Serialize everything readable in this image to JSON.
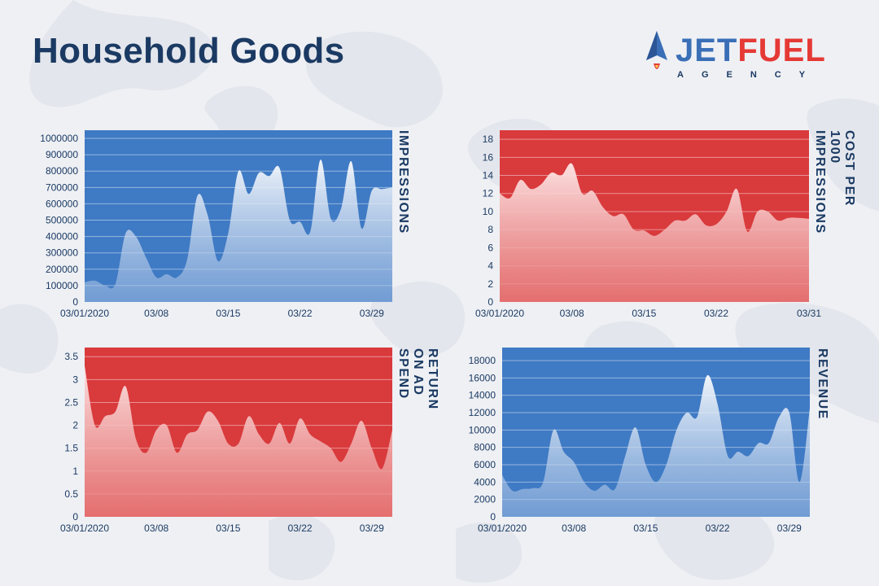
{
  "header": {
    "title": "Household Goods"
  },
  "logo": {
    "word_a": "JET",
    "word_b": "FUEL",
    "sub": "AGENCY",
    "icon": "rocket-icon",
    "colors": {
      "blue": "#3a6fb7",
      "red": "#e53935"
    }
  },
  "colors": {
    "blue": "#3f7ac4",
    "red": "#d93a3c",
    "text": "#1b3a63",
    "background": "#eef0f4"
  },
  "chart_data": [
    {
      "id": "impressions",
      "type": "area",
      "ylabel": "IMPRESSIONS",
      "theme": "blue",
      "ylim": [
        0,
        1050000
      ],
      "yticks": [
        0,
        100000,
        200000,
        300000,
        400000,
        500000,
        600000,
        700000,
        800000,
        900000,
        1000000
      ],
      "xticks": [
        {
          "day": 1,
          "label": "03/01/2020"
        },
        {
          "day": 8,
          "label": "03/08"
        },
        {
          "day": 15,
          "label": "03/15"
        },
        {
          "day": 22,
          "label": "03/22"
        },
        {
          "day": 29,
          "label": "03/29"
        }
      ],
      "x": [
        1,
        2,
        3,
        4,
        5,
        6,
        7,
        8,
        9,
        10,
        11,
        12,
        13,
        14,
        15,
        16,
        17,
        18,
        19,
        20,
        21,
        22,
        23,
        24,
        25,
        26,
        27,
        28,
        29,
        30,
        31
      ],
      "values": [
        120000,
        130000,
        100000,
        110000,
        420000,
        400000,
        270000,
        150000,
        170000,
        150000,
        260000,
        650000,
        530000,
        250000,
        420000,
        800000,
        660000,
        790000,
        770000,
        820000,
        500000,
        490000,
        430000,
        870000,
        510000,
        570000,
        860000,
        450000,
        680000,
        690000,
        700000
      ]
    },
    {
      "id": "cpm",
      "type": "area",
      "ylabel": "COST PER 1000\nIMPRESSIONS",
      "theme": "red",
      "ylim": [
        0,
        19
      ],
      "yticks": [
        0,
        2,
        4,
        6,
        8,
        10,
        12,
        14,
        16,
        18
      ],
      "xticks": [
        {
          "day": 1,
          "label": "03/01/2020"
        },
        {
          "day": 8,
          "label": "03/08"
        },
        {
          "day": 15,
          "label": "03/15"
        },
        {
          "day": 22,
          "label": "03/22"
        },
        {
          "day": 31,
          "label": "03/31"
        }
      ],
      "x": [
        1,
        2,
        3,
        4,
        5,
        6,
        7,
        8,
        9,
        10,
        11,
        12,
        13,
        14,
        15,
        16,
        17,
        18,
        19,
        20,
        21,
        22,
        23,
        24,
        25,
        26,
        27,
        28,
        29,
        30,
        31
      ],
      "values": [
        12,
        11.5,
        13.5,
        12.5,
        13,
        14.3,
        14,
        15.3,
        12,
        12.3,
        10.5,
        9.5,
        9.7,
        8,
        7.9,
        7.3,
        8,
        9,
        9,
        9.7,
        8.5,
        8.6,
        10,
        12.5,
        7.8,
        10,
        10,
        9,
        9.3,
        9.3,
        9.2
      ]
    },
    {
      "id": "roas",
      "type": "area",
      "ylabel": "RETURN ON AD SPEND",
      "theme": "red",
      "ylim": [
        0,
        3.7
      ],
      "yticks": [
        0,
        0.5,
        1,
        1.5,
        2,
        2.5,
        3,
        3.5
      ],
      "yticklabels": [
        "0",
        "0.5",
        "1",
        "1.5",
        "2",
        "2.5",
        "3",
        "3.5"
      ],
      "xticks": [
        {
          "day": 1,
          "label": "03/01/2020"
        },
        {
          "day": 8,
          "label": "03/08"
        },
        {
          "day": 15,
          "label": "03/15"
        },
        {
          "day": 22,
          "label": "03/22"
        },
        {
          "day": 29,
          "label": "03/29"
        }
      ],
      "x": [
        1,
        2,
        3,
        4,
        5,
        6,
        7,
        8,
        9,
        10,
        11,
        12,
        13,
        14,
        15,
        16,
        17,
        18,
        19,
        20,
        21,
        22,
        23,
        24,
        25,
        26,
        27,
        28,
        29,
        30,
        31
      ],
      "values": [
        3.3,
        2,
        2.2,
        2.3,
        2.85,
        1.7,
        1.4,
        1.9,
        2,
        1.4,
        1.8,
        1.9,
        2.3,
        2.1,
        1.6,
        1.6,
        2.2,
        1.8,
        1.6,
        2.05,
        1.6,
        2.15,
        1.8,
        1.65,
        1.5,
        1.2,
        1.6,
        2.1,
        1.5,
        1.05,
        1.9
      ]
    },
    {
      "id": "revenue",
      "type": "area",
      "ylabel": "REVENUE",
      "theme": "blue",
      "ylim": [
        0,
        19500
      ],
      "yticks": [
        0,
        2000,
        4000,
        6000,
        8000,
        10000,
        12000,
        14000,
        16000,
        18000
      ],
      "xticks": [
        {
          "day": 1,
          "label": "03/01/2020"
        },
        {
          "day": 8,
          "label": "03/08"
        },
        {
          "day": 15,
          "label": "03/15"
        },
        {
          "day": 22,
          "label": "03/22"
        },
        {
          "day": 29,
          "label": "03/29"
        }
      ],
      "x": [
        1,
        2,
        3,
        4,
        5,
        6,
        7,
        8,
        9,
        10,
        11,
        12,
        13,
        14,
        15,
        16,
        17,
        18,
        19,
        20,
        21,
        22,
        23,
        24,
        25,
        26,
        27,
        28,
        29,
        30,
        31
      ],
      "values": [
        4800,
        3000,
        3200,
        3300,
        4000,
        10000,
        7500,
        6300,
        4000,
        3000,
        3700,
        3200,
        7000,
        10300,
        6000,
        4000,
        6000,
        10000,
        12000,
        11500,
        16300,
        13000,
        7000,
        7500,
        7000,
        8500,
        8500,
        11500,
        12000,
        4000,
        12500
      ]
    }
  ]
}
